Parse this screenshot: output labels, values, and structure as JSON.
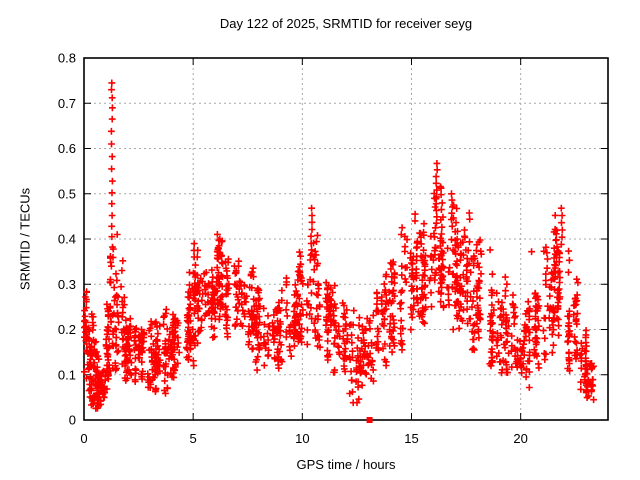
{
  "chart_data": {
    "type": "scatter",
    "title": "Day 122 of 2025, SRMTID for receiver seyg",
    "xlabel": "GPS time / hours",
    "ylabel": "SRMTID / TECUs",
    "xlim": [
      0,
      24
    ],
    "ylim": [
      0,
      0.8
    ],
    "xticks": [
      0,
      5,
      10,
      15,
      20
    ],
    "xticklabels": [
      "0",
      "5",
      "10",
      "15",
      "20"
    ],
    "yticks": [
      0,
      0.1,
      0.2,
      0.3,
      0.4,
      0.5,
      0.6,
      0.7,
      0.8
    ],
    "yticklabels": [
      "0",
      "0.1",
      "0.2",
      "0.3",
      "0.4",
      "0.5",
      "0.6",
      "0.7",
      "0.8"
    ],
    "grid_x": [
      5,
      10,
      15,
      20
    ],
    "grid_y": [
      0.1,
      0.2,
      0.3,
      0.4,
      0.5,
      0.6,
      0.7
    ],
    "grid_on": true,
    "legend": "none",
    "marker": "+",
    "marker_color": "#ff0000",
    "grid_color": "#a8a8a8",
    "border_color": "#000000",
    "band_bins": [
      {
        "x0": 0.0,
        "x1": 0.25,
        "lo": 0.06,
        "hi": 0.32,
        "n": 30
      },
      {
        "x0": 0.25,
        "x1": 0.55,
        "lo": 0.03,
        "hi": 0.18,
        "n": 45
      },
      {
        "x0": 0.25,
        "x1": 0.5,
        "lo": 0.18,
        "hi": 0.27,
        "n": 6
      },
      {
        "x0": 0.55,
        "x1": 0.95,
        "lo": 0.02,
        "hi": 0.12,
        "n": 60
      },
      {
        "x0": 0.95,
        "x1": 1.2,
        "lo": 0.06,
        "hi": 0.26,
        "n": 35
      },
      {
        "x0": 1.2,
        "x1": 1.45,
        "lo": 0.1,
        "hi": 0.36,
        "n": 30
      },
      {
        "x0": 1.45,
        "x1": 1.8,
        "lo": 0.1,
        "hi": 0.3,
        "n": 35
      },
      {
        "x0": 1.8,
        "x1": 2.3,
        "lo": 0.08,
        "hi": 0.25,
        "n": 45
      },
      {
        "x0": 2.3,
        "x1": 2.9,
        "lo": 0.08,
        "hi": 0.22,
        "n": 50
      },
      {
        "x0": 2.9,
        "x1": 3.4,
        "lo": 0.06,
        "hi": 0.2,
        "n": 45
      },
      {
        "x0": 3.4,
        "x1": 3.9,
        "lo": 0.05,
        "hi": 0.24,
        "n": 45
      },
      {
        "x0": 3.9,
        "x1": 4.5,
        "lo": 0.08,
        "hi": 0.24,
        "n": 50
      },
      {
        "x0": 4.5,
        "x1": 5.0,
        "lo": 0.12,
        "hi": 0.3,
        "n": 45
      },
      {
        "x0": 5.0,
        "x1": 5.5,
        "lo": 0.15,
        "hi": 0.34,
        "n": 45
      },
      {
        "x0": 5.5,
        "x1": 6.0,
        "lo": 0.17,
        "hi": 0.33,
        "n": 45
      },
      {
        "x0": 6.0,
        "x1": 6.5,
        "lo": 0.2,
        "hi": 0.4,
        "n": 45
      },
      {
        "x0": 6.5,
        "x1": 7.1,
        "lo": 0.18,
        "hi": 0.36,
        "n": 50
      },
      {
        "x0": 7.1,
        "x1": 7.8,
        "lo": 0.15,
        "hi": 0.31,
        "n": 50
      },
      {
        "x0": 7.8,
        "x1": 8.5,
        "lo": 0.1,
        "hi": 0.27,
        "n": 50
      },
      {
        "x0": 8.5,
        "x1": 9.2,
        "lo": 0.11,
        "hi": 0.29,
        "n": 50
      },
      {
        "x0": 9.2,
        "x1": 9.8,
        "lo": 0.14,
        "hi": 0.31,
        "n": 45
      },
      {
        "x0": 9.8,
        "x1": 10.3,
        "lo": 0.16,
        "hi": 0.34,
        "n": 40
      },
      {
        "x0": 10.3,
        "x1": 10.7,
        "lo": 0.15,
        "hi": 0.37,
        "n": 30
      },
      {
        "x0": 10.7,
        "x1": 11.4,
        "lo": 0.12,
        "hi": 0.28,
        "n": 50
      },
      {
        "x0": 11.4,
        "x1": 12.1,
        "lo": 0.1,
        "hi": 0.26,
        "n": 50
      },
      {
        "x0": 12.1,
        "x1": 12.8,
        "lo": 0.03,
        "hi": 0.22,
        "n": 45
      },
      {
        "x0": 12.8,
        "x1": 13.3,
        "lo": 0.08,
        "hi": 0.24,
        "n": 35
      },
      {
        "x0": 13.3,
        "x1": 14.0,
        "lo": 0.12,
        "hi": 0.31,
        "n": 50
      },
      {
        "x0": 14.0,
        "x1": 14.7,
        "lo": 0.15,
        "hi": 0.36,
        "n": 50
      },
      {
        "x0": 14.7,
        "x1": 15.3,
        "lo": 0.18,
        "hi": 0.42,
        "n": 50
      },
      {
        "x0": 15.3,
        "x1": 15.9,
        "lo": 0.2,
        "hi": 0.44,
        "n": 50
      },
      {
        "x0": 15.9,
        "x1": 16.5,
        "lo": 0.24,
        "hi": 0.52,
        "n": 55
      },
      {
        "x0": 16.5,
        "x1": 17.1,
        "lo": 0.2,
        "hi": 0.46,
        "n": 50
      },
      {
        "x0": 17.1,
        "x1": 17.7,
        "lo": 0.18,
        "hi": 0.42,
        "n": 45
      },
      {
        "x0": 17.7,
        "x1": 18.4,
        "lo": 0.15,
        "hi": 0.36,
        "n": 50
      },
      {
        "x0": 18.4,
        "x1": 19.1,
        "lo": 0.1,
        "hi": 0.33,
        "n": 50
      },
      {
        "x0": 19.1,
        "x1": 19.8,
        "lo": 0.1,
        "hi": 0.28,
        "n": 45
      },
      {
        "x0": 19.8,
        "x1": 20.4,
        "lo": 0.07,
        "hi": 0.24,
        "n": 45
      },
      {
        "x0": 20.4,
        "x1": 21.0,
        "lo": 0.1,
        "hi": 0.28,
        "n": 45
      },
      {
        "x0": 21.0,
        "x1": 21.5,
        "lo": 0.13,
        "hi": 0.36,
        "n": 40
      },
      {
        "x0": 21.5,
        "x1": 22.1,
        "lo": 0.18,
        "hi": 0.42,
        "n": 45
      },
      {
        "x0": 22.1,
        "x1": 22.7,
        "lo": 0.1,
        "hi": 0.33,
        "n": 45
      },
      {
        "x0": 22.7,
        "x1": 23.05,
        "lo": 0.05,
        "hi": 0.18,
        "n": 35
      },
      {
        "x0": 23.05,
        "x1": 23.3,
        "lo": 0.04,
        "hi": 0.12,
        "n": 25
      }
    ],
    "spike_columns": [
      {
        "x": 1.28,
        "ys": [
          0.745,
          0.73,
          0.712,
          0.69,
          0.665,
          0.638,
          0.61,
          0.582,
          0.555,
          0.528,
          0.502,
          0.478,
          0.452,
          0.428,
          0.405,
          0.382
        ]
      },
      {
        "x": 1.53,
        "ys": [
          0.41
        ]
      },
      {
        "x": 5.2,
        "ys": [
          0.375,
          0.36
        ]
      },
      {
        "x": 6.2,
        "ys": [
          0.4,
          0.385,
          0.37
        ]
      },
      {
        "x": 10.42,
        "ys": [
          0.468,
          0.452,
          0.437,
          0.421,
          0.406,
          0.39,
          0.376
        ]
      },
      {
        "x": 14.55,
        "ys": [
          0.425,
          0.41
        ]
      },
      {
        "x": 15.18,
        "ys": [
          0.455,
          0.44
        ]
      },
      {
        "x": 16.15,
        "ys": [
          0.567,
          0.553,
          0.538,
          0.523,
          0.508,
          0.493,
          0.478,
          0.463,
          0.449,
          0.435
        ]
      },
      {
        "x": 16.85,
        "ys": [
          0.5,
          0.486,
          0.471,
          0.457,
          0.443,
          0.428
        ]
      },
      {
        "x": 17.42,
        "ys": [
          0.42,
          0.406
        ]
      },
      {
        "x": 18.62,
        "ys": [
          0.376
        ]
      },
      {
        "x": 20.52,
        "ys": [
          0.372
        ]
      },
      {
        "x": 21.88,
        "ys": [
          0.468,
          0.452,
          0.436,
          0.42,
          0.404,
          0.388
        ]
      }
    ],
    "outlier_squares": [
      [
        13.08,
        0.0
      ]
    ]
  }
}
